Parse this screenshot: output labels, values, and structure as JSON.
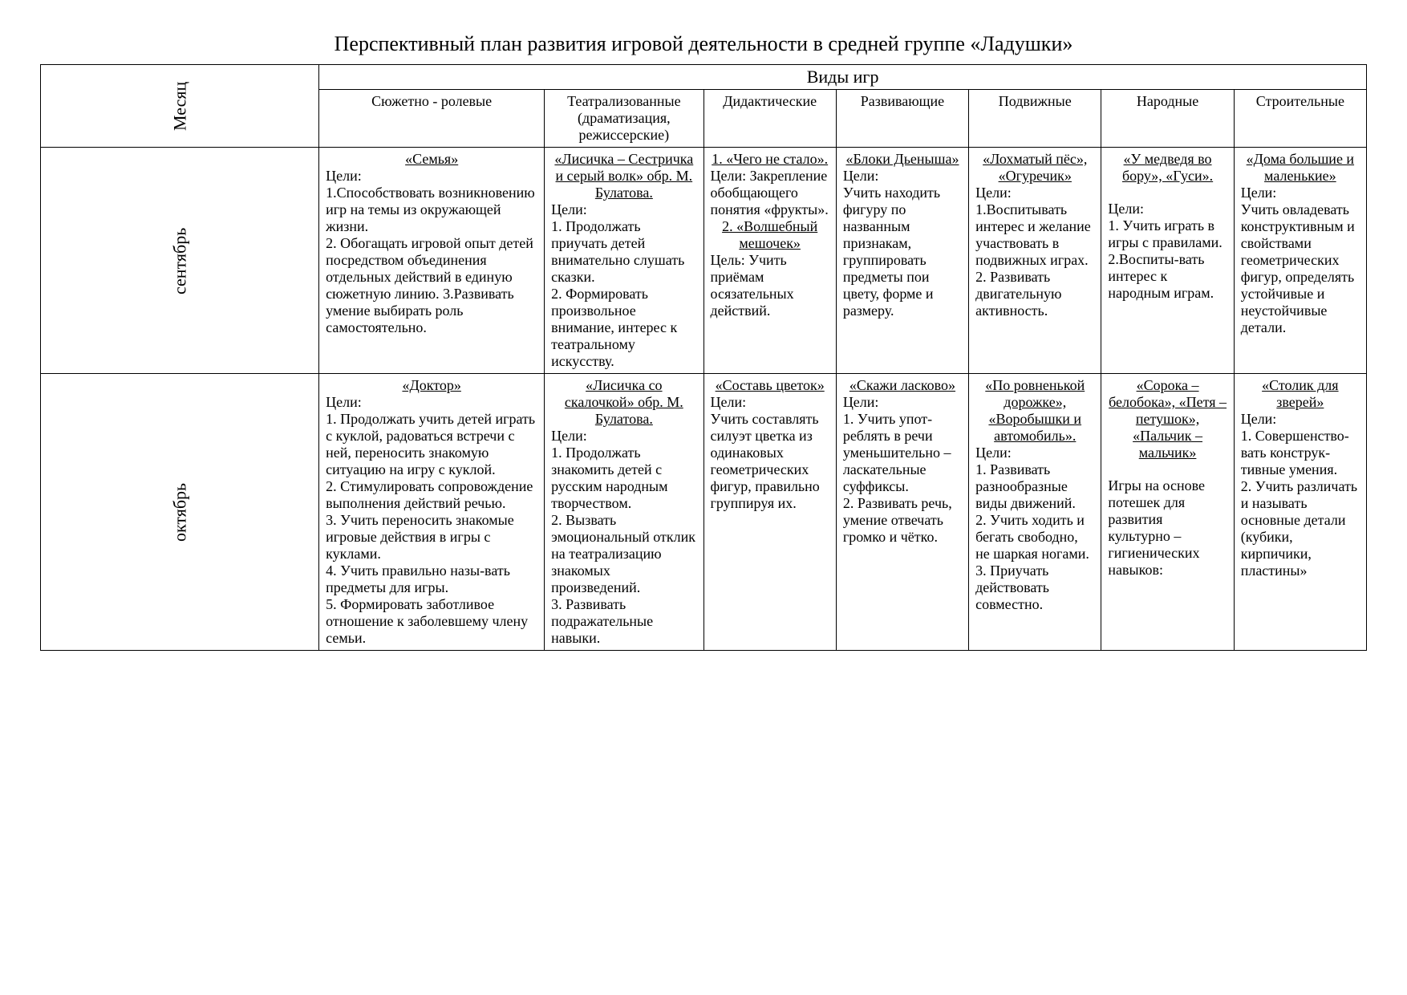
{
  "title": "Перспективный план развития игровой деятельности в средней группе «Ладушки»",
  "header": {
    "month": "Месяц",
    "gametypes": "Виды игр",
    "cols": [
      "Сюжетно - ролевые",
      "Театрализованные (драматизация, режиссерские)",
      "Дидактические",
      "Развивающие",
      "Подвижные",
      "Народные",
      "Строительные"
    ]
  },
  "rows": [
    {
      "month": "сентябрь",
      "c1": {
        "title": "«Семья»",
        "body": "Цели:\n1.Способствовать возникновению игр на темы из окружающей жизни.\n2. Обогащать игровой опыт детей посредством объединения отдельных действий в единую сюжетную линию. 3.Развивать умение выбирать роль самостоятельно."
      },
      "c2": {
        "title": "«Лисичка – Сестричка и серый волк» обр. М. Булатова.",
        "body": "Цели:\n1. Продолжать приучать детей внимательно слушать сказки.\n2. Формировать произвольное внимание, интерес к театральному искусству."
      },
      "c3": {
        "title": "1. «Чего не стало».",
        "body": "Цели: Закрепление обобщающего понятия «фрукты».",
        "title2": "2. «Волшебный мешочек»",
        "body2": "Цель: Учить приёмам осязательных действий."
      },
      "c4": {
        "title": "«Блоки Дьеныша»",
        "body": "Цели:\nУчить находить фигуру по названным признакам, группировать предметы пои цвету, форме и размеру."
      },
      "c5": {
        "title": "«Лохматый пёс», «Огуречик»",
        "body": "Цели:\n1.Воспитывать интерес и желание участвовать в подвижных играх.\n2. Развивать двигательную активность."
      },
      "c6": {
        "title": "«У медведя во бору», «Гуси».",
        "body": "Цели:\n1. Учить играть в игры с правилами.\n2.Воспиты-вать интерес к народным играм."
      },
      "c7": {
        "title": "«Дома большие и маленькие»",
        "body": "Цели:\nУчить овладевать конструктивным и свойствами геометрических фигур, определять устойчивые и неустойчивые детали."
      }
    },
    {
      "month": "октябрь",
      "c1": {
        "title": "«Доктор»",
        "body": "Цели:\n1. Продолжать учить детей играть с куклой, радоваться встречи с ней, переносить знакомую ситуацию на игру с куклой.\n2. Стимулировать сопровождение выполнения действий речью.\n3. Учить переносить знакомые игровые действия в игры с куклами.\n 4. Учить правильно назы-вать предметы для игры.\n5. Формировать заботливое отношение к заболевшему члену семьи."
      },
      "c2": {
        "title": "«Лисичка со скалочкой» обр. М. Булатова.",
        "body": "Цели:\n1. Продолжать знакомить детей с русским народным творчеством.\n2. Вызвать эмоциональный отклик на театрализацию знакомых произведений.\n3. Развивать подражательные навыки."
      },
      "c3": {
        "title": "«Составь цветок»",
        "body": "Цели:\nУчить составлять силуэт цветка из одинаковых геометрических фигур, правильно группируя их."
      },
      "c4": {
        "title": "«Скажи ласково»",
        "body": "Цели:\n1. Учить упот-реблять в речи уменьшительно – ласкательные суффиксы.\n2. Развивать речь, умение отвечать громко и чётко."
      },
      "c5": {
        "title": "«По ровненькой дорожке», «Воробышки и автомобиль».",
        "body": "Цели:\n1. Развивать разнообразные виды движений.\n2. Учить ходить и бегать свободно, не шаркая ногами.\n3. Приучать действовать совместно."
      },
      "c6": {
        "title": "«Сорока – белобока», «Петя – петушок», «Пальчик – мальчик»",
        "body": "Игры на основе потешек для развития культурно – гигиенических навыков:"
      },
      "c7": {
        "title": "«Столик для зверей»",
        "body": "Цели:\n1. Совершенство-вать конструк-тивные умения.\n2. Учить различать и называть основные детали (кубики, кирпичики, пластины»"
      }
    }
  ]
}
